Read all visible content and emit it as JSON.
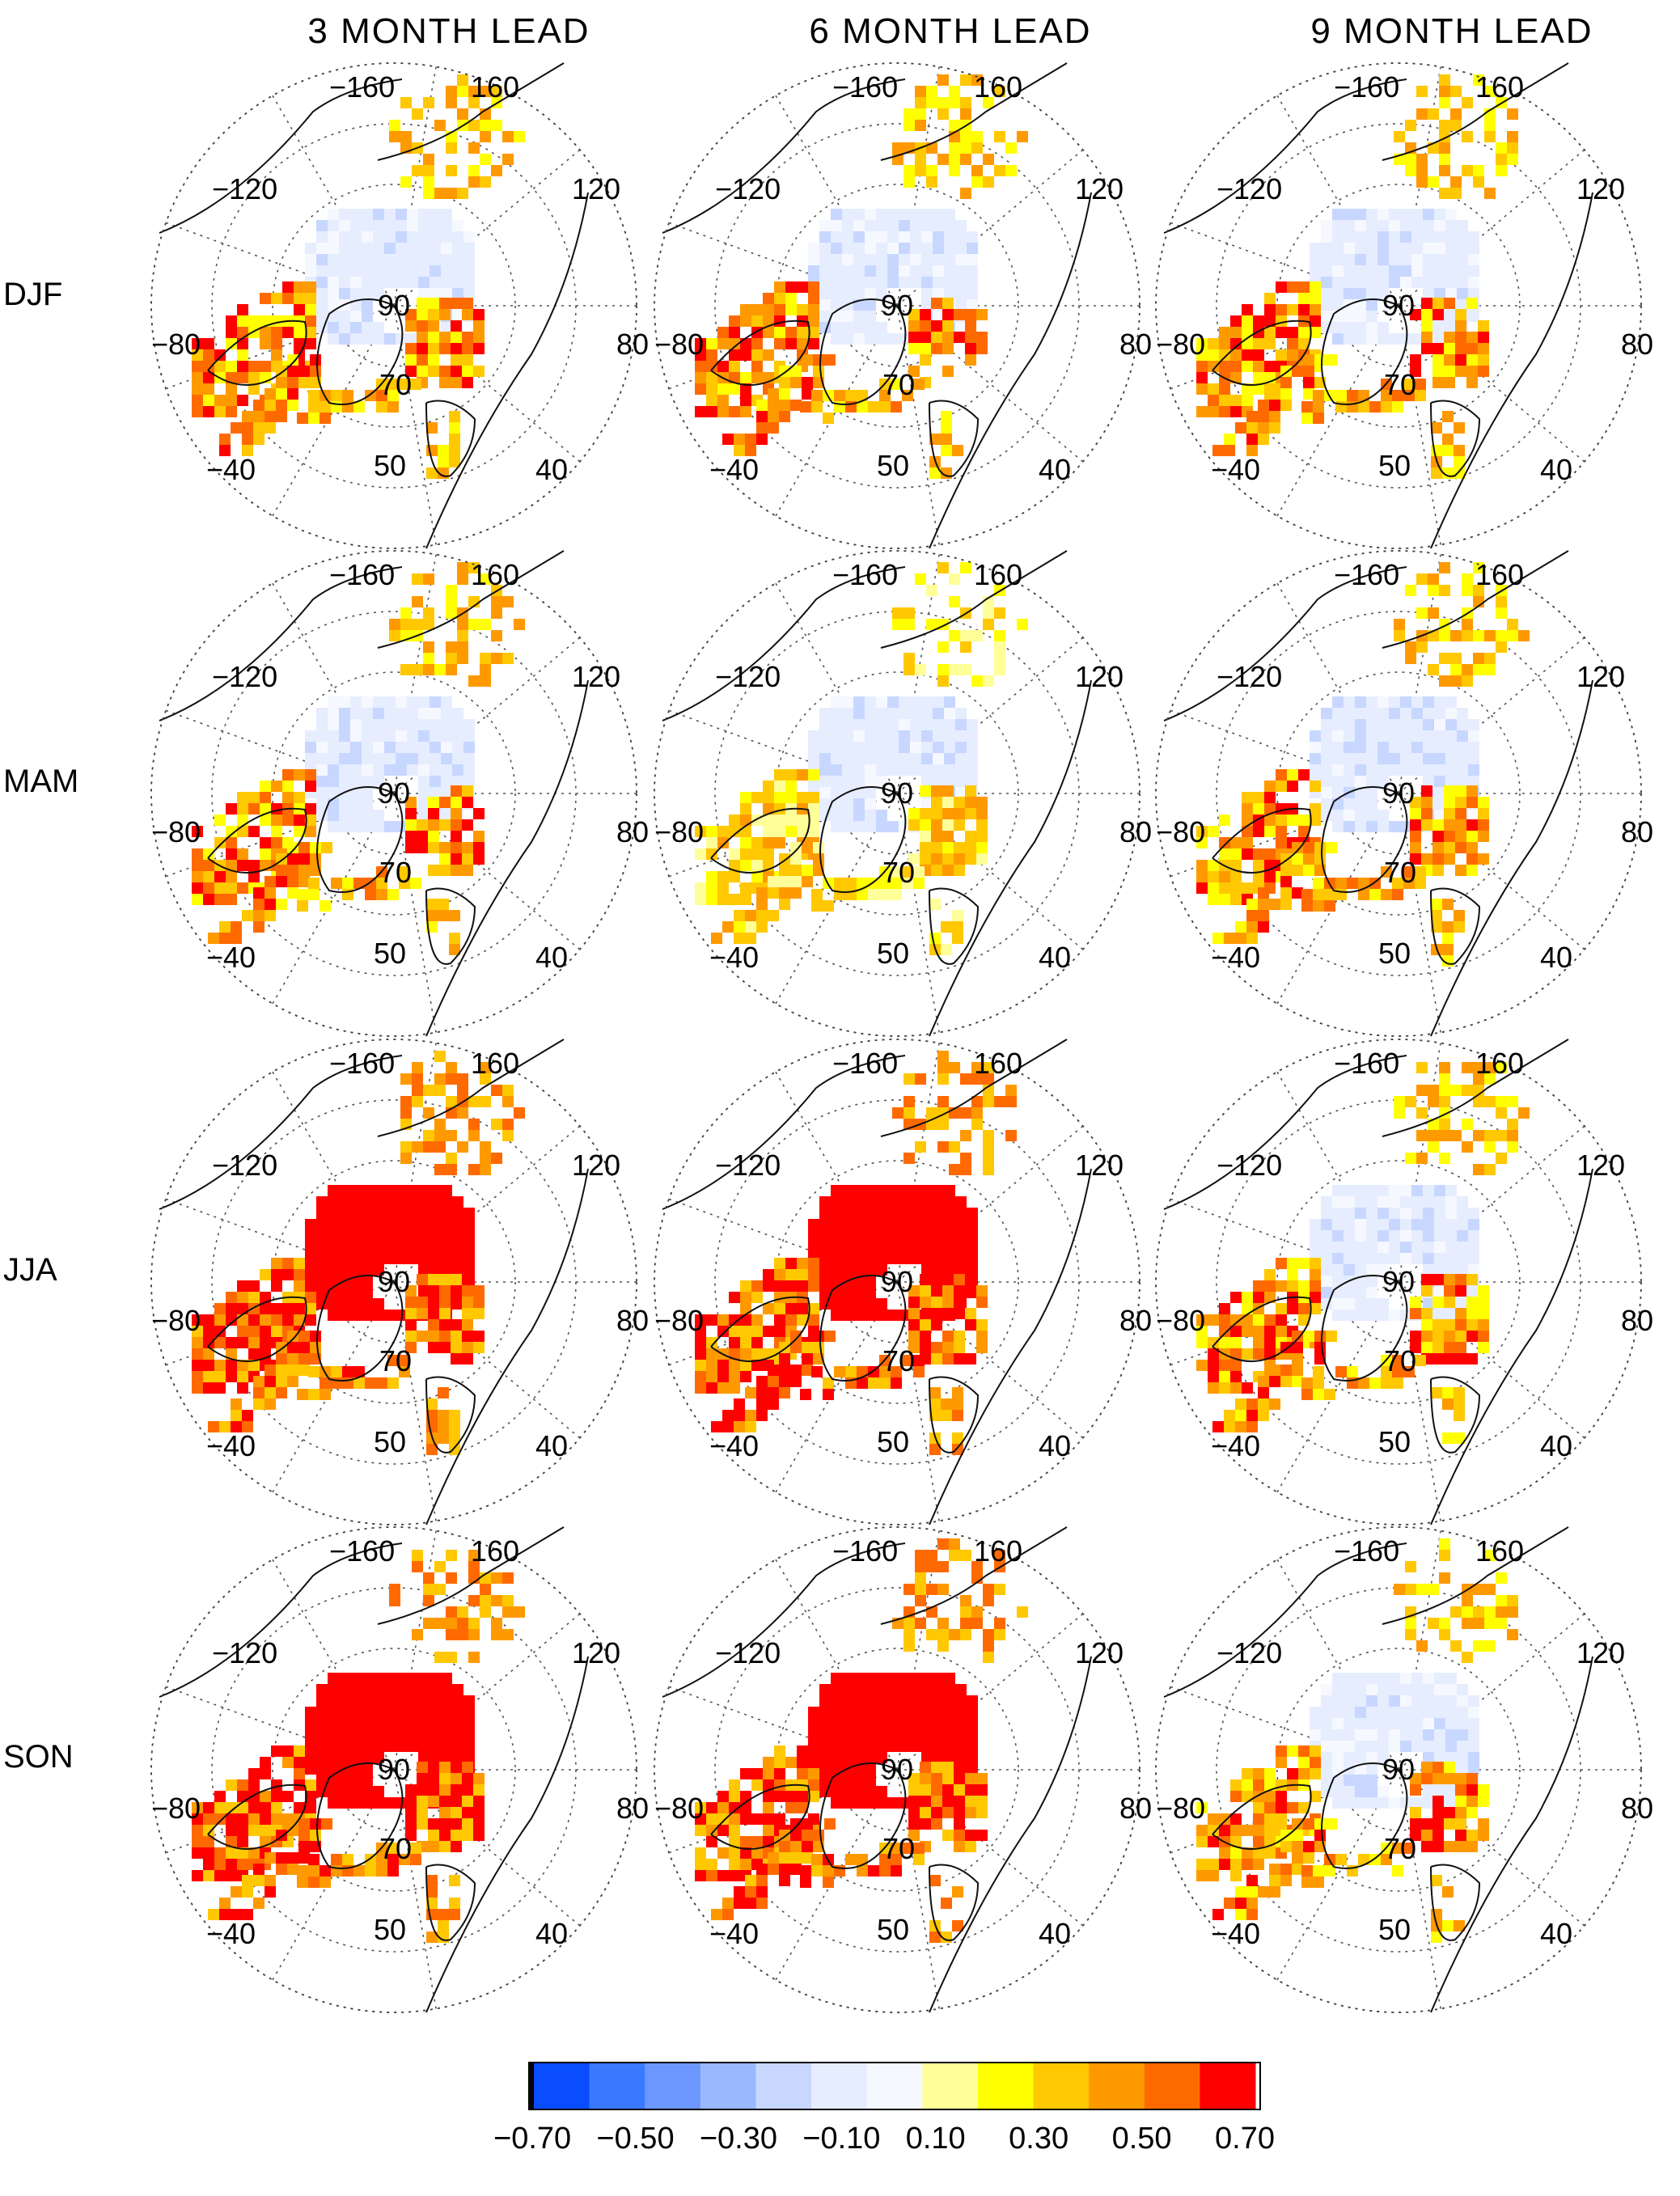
{
  "columns": [
    "3 MONTH LEAD",
    "6 MONTH LEAD",
    "9 MONTH LEAD"
  ],
  "rows": [
    "DJF",
    "MAM",
    "JJA",
    "SON"
  ],
  "map_labels": {
    "lon_top_left": "−160",
    "lon_top_right": "160",
    "lon_upper_left": "−120",
    "lon_upper_right": "120",
    "lon_left": "−80",
    "lon_right": "80",
    "lon_lower_left": "−40",
    "lon_lower_right": "40",
    "lat_pole": "90",
    "lat_70": "70",
    "lat_50": "50"
  },
  "colorbar": {
    "labels": [
      "−0.70",
      "−0.50",
      "−0.30",
      "−0.10",
      "0.10",
      "0.30",
      "0.50",
      "0.70"
    ],
    "colors": [
      "#0a4dff",
      "#3a78ff",
      "#6b97ff",
      "#9ab8ff",
      "#c7d7ff",
      "#e6edff",
      "#f6f8ff",
      "#ffff99",
      "#ffff00",
      "#ffc800",
      "#ff9900",
      "#ff6a00",
      "#ff0000"
    ]
  },
  "intensity_by_panel": [
    [
      "moderate",
      "moderate",
      "moderate"
    ],
    [
      "moderate",
      "low",
      "moderate"
    ],
    [
      "high",
      "high",
      "moderate"
    ],
    [
      "high",
      "high",
      "moderate"
    ]
  ]
}
